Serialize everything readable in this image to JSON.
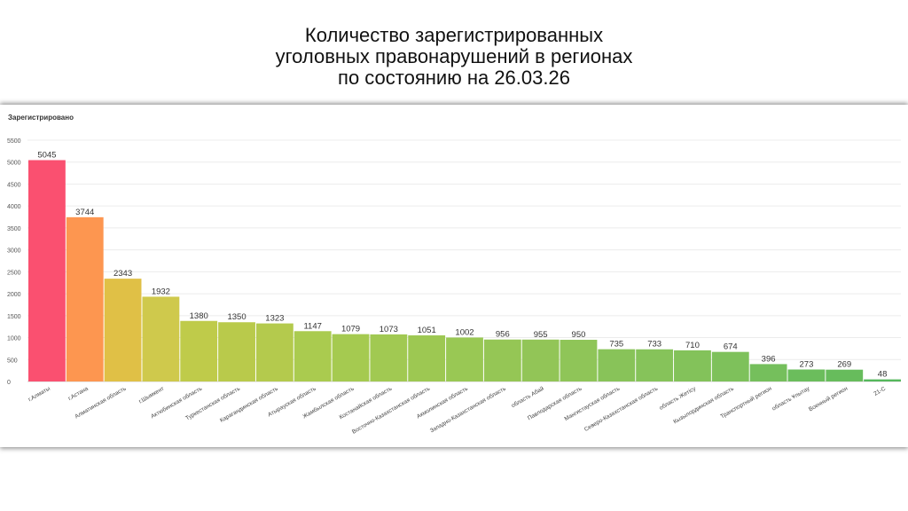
{
  "title_lines": [
    "Количество зарегистрированных",
    "уголовных правонарушений в регионах",
    "по состоянию на 26.03.26"
  ],
  "chart_data": {
    "type": "bar",
    "ylabel": "Зарегистрировано",
    "ylim": [
      0,
      5500
    ],
    "yticks": [
      0,
      500,
      1000,
      1500,
      2000,
      2500,
      3000,
      3500,
      4000,
      4500,
      5000,
      5500
    ],
    "grid": true,
    "categories": [
      "г.Алматы",
      "г.Астана",
      "Алматинская область",
      "г.Шымкент",
      "Актюбинская область",
      "Туркестанская область",
      "Карагандинская область",
      "Атырауская область",
      "Жамбылская область",
      "Костанайская область",
      "Восточно-Казахстанская область",
      "Акмолинская область",
      "Западно-Казахстанская область",
      "область Абай",
      "Павлодарская область",
      "Мангистауская область",
      "Северо-Казахстанская область",
      "область Жетісу",
      "Кызылординская область",
      "Транспортный регион",
      "область Ұлытау",
      "Военный регион",
      "21-С"
    ],
    "values": [
      5045,
      3744,
      2343,
      1932,
      1380,
      1350,
      1323,
      1147,
      1079,
      1073,
      1051,
      1002,
      956,
      955,
      950,
      735,
      733,
      710,
      674,
      396,
      273,
      269,
      48
    ],
    "colors": [
      "#fa5070",
      "#fd9650",
      "#e0c046",
      "#cfc94c",
      "#bfcb4a",
      "#b9ca4b",
      "#b4ca4d",
      "#aacb4f",
      "#a5ca50",
      "#a1c952",
      "#9dc852",
      "#99c854",
      "#95c655",
      "#92c557",
      "#8fc558",
      "#88c359",
      "#86c35a",
      "#83c25a",
      "#7ec15b",
      "#75bf5c",
      "#6bbd5c",
      "#67bc5c",
      "#55b85c"
    ]
  }
}
